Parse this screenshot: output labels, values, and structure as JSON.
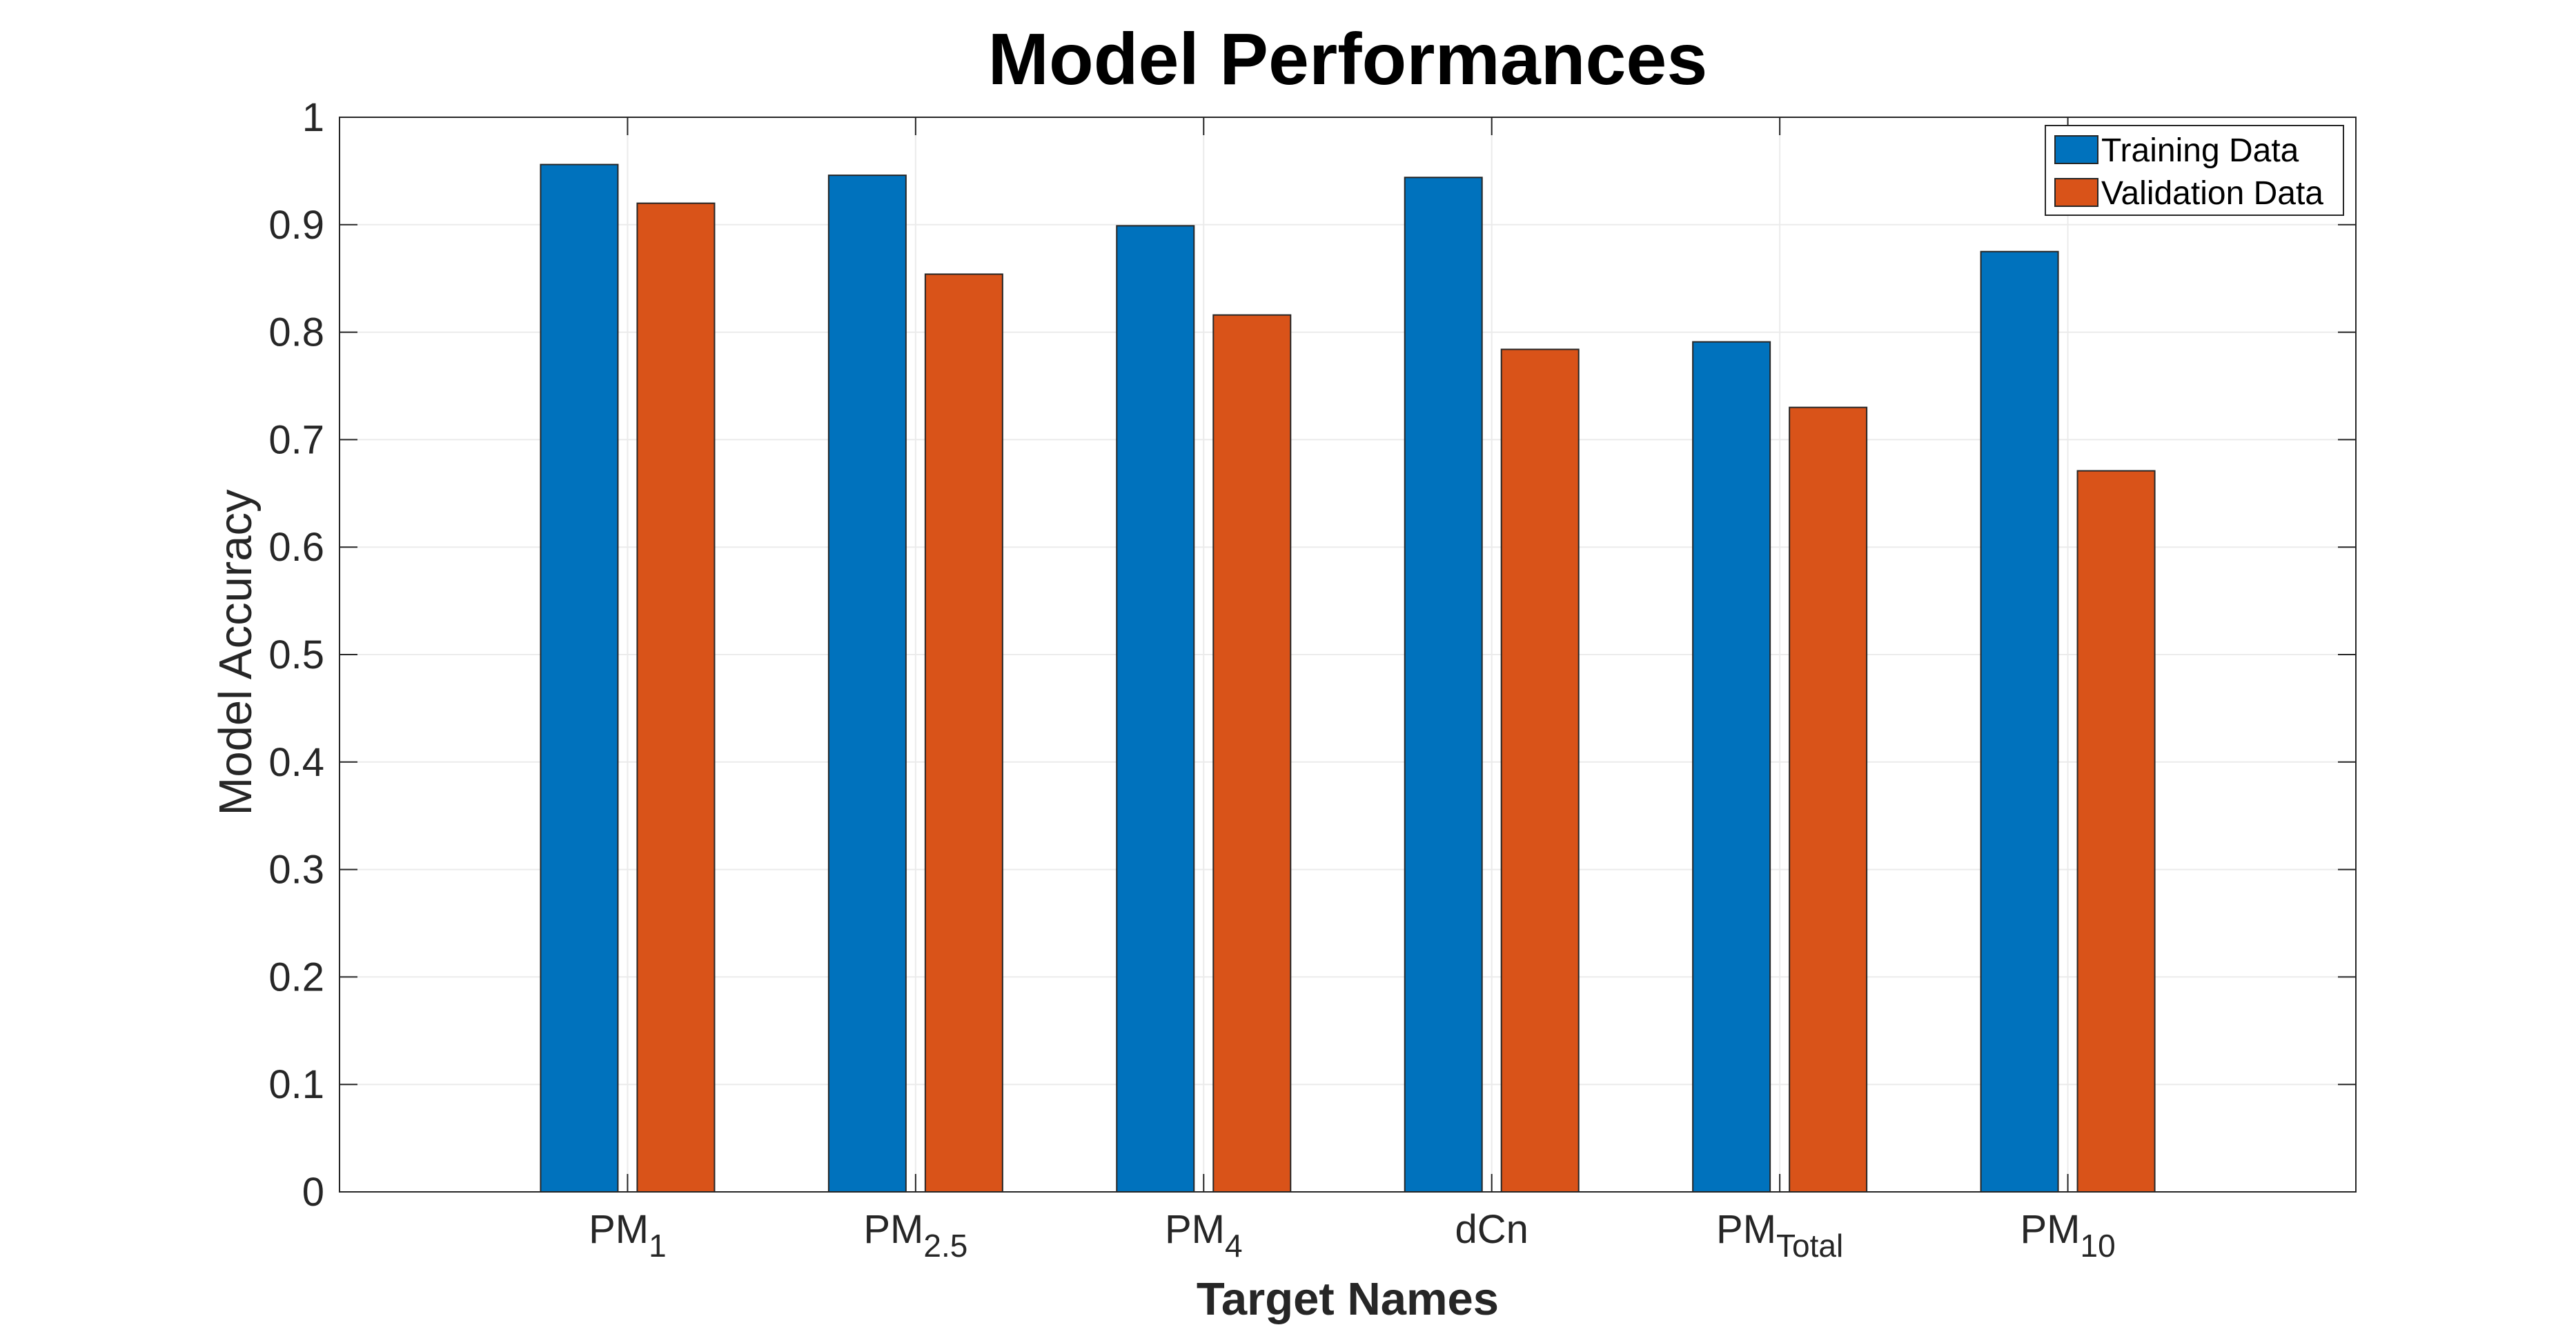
{
  "chart_data": {
    "type": "bar",
    "title": "Model Performances",
    "xlabel": "Target Names",
    "ylabel": "Model Accuracy",
    "categories": [
      {
        "base": "PM",
        "sub": "1"
      },
      {
        "base": "PM",
        "sub": "2.5"
      },
      {
        "base": "PM",
        "sub": "4"
      },
      {
        "base": "dCn",
        "sub": ""
      },
      {
        "base": "PM",
        "sub": "Total"
      },
      {
        "base": "PM",
        "sub": "10"
      }
    ],
    "series": [
      {
        "name": "Training Data",
        "color": "#0072BD",
        "values": [
          0.956,
          0.946,
          0.899,
          0.944,
          0.791,
          0.875
        ]
      },
      {
        "name": "Validation Data",
        "color": "#D95319",
        "values": [
          0.92,
          0.854,
          0.816,
          0.784,
          0.73,
          0.671
        ]
      }
    ],
    "ylim": [
      0,
      1
    ],
    "yticks": [
      "0",
      "0.1",
      "0.2",
      "0.3",
      "0.4",
      "0.5",
      "0.6",
      "0.7",
      "0.8",
      "0.9",
      "1"
    ],
    "grid": true,
    "legend_position": "top-right"
  }
}
